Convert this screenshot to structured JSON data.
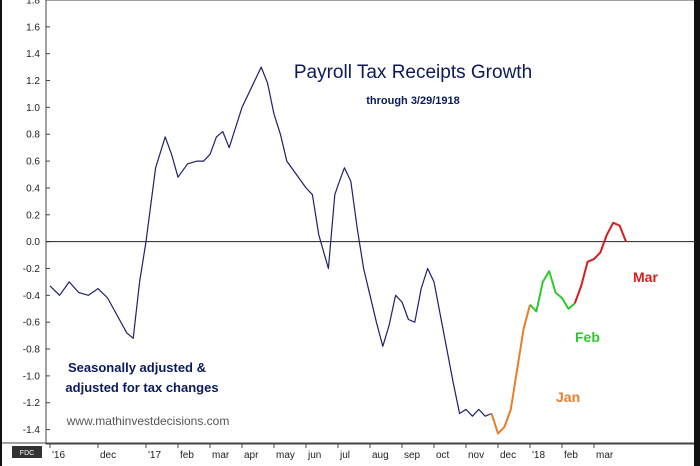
{
  "chart_data": {
    "type": "line",
    "title": "Payroll Tax Receipts Growth",
    "subtitle": "through 3/29/1918",
    "annotation_lines": [
      "Seasonally adjusted &",
      "adjusted for tax changes"
    ],
    "website": "www.mathinvestdecisions.com",
    "badge": "FDC",
    "xlabel": "",
    "ylabel": "",
    "ylim": [
      -1.5,
      1.8
    ],
    "y_ticks": [
      "1.8",
      "1.6",
      "1.4",
      "1.2",
      "1.0",
      "0.8",
      "0.6",
      "0.4",
      "0.2",
      "0.0",
      "-0.2",
      "-0.4",
      "-0.6",
      "-0.8",
      "-1.0",
      "-1.2",
      "-1.4"
    ],
    "y_tick_values": [
      1.8,
      1.6,
      1.4,
      1.2,
      1.0,
      0.8,
      0.6,
      0.4,
      0.2,
      0.0,
      -0.2,
      -0.4,
      -0.6,
      -0.8,
      -1.0,
      -1.2,
      -1.4
    ],
    "x_ticks": [
      "'16",
      "dec",
      "'17",
      "feb",
      "mar",
      "apr",
      "may",
      "jun",
      "jul",
      "aug",
      "sep",
      "oct",
      "nov",
      "dec",
      "'18",
      "feb",
      "mar"
    ],
    "x_tick_positions": [
      0,
      1.5,
      3,
      4,
      5,
      6,
      7,
      8,
      9,
      10,
      11,
      12,
      13,
      14,
      15,
      16,
      17
    ],
    "xlim": [
      0,
      20
    ],
    "reference_line": 0.0,
    "grid": false,
    "series": [
      {
        "color": "#1f1f6b",
        "x": [
          0,
          0.3,
          0.6,
          0.9,
          1.2,
          1.5,
          1.8,
          2.1,
          2.4,
          2.6,
          2.8,
          3.0,
          3.3,
          3.6,
          3.8,
          4.0,
          4.3,
          4.6,
          4.8,
          5.0,
          5.2,
          5.4,
          5.6,
          5.8,
          6.0,
          6.2,
          6.4,
          6.6,
          6.8,
          7.0,
          7.2,
          7.4,
          7.7,
          8.0,
          8.2,
          8.4,
          8.7,
          8.9,
          9.0,
          9.2,
          9.4,
          9.6,
          9.8,
          10.0,
          10.2,
          10.4,
          10.6,
          10.8,
          11.0,
          11.2,
          11.4,
          11.6,
          11.8,
          12.0,
          12.2,
          12.4,
          12.6,
          12.8,
          13.0,
          13.2,
          13.4,
          13.6,
          13.8
        ],
        "values": [
          -0.33,
          -0.4,
          -0.3,
          -0.38,
          -0.4,
          -0.35,
          -0.42,
          -0.55,
          -0.68,
          -0.72,
          -0.3,
          0.0,
          0.55,
          0.78,
          0.65,
          0.48,
          0.58,
          0.6,
          0.6,
          0.65,
          0.78,
          0.82,
          0.7,
          0.85,
          1.0,
          1.1,
          1.2,
          1.3,
          1.18,
          0.95,
          0.8,
          0.6,
          0.5,
          0.4,
          0.35,
          0.05,
          -0.2,
          0.35,
          0.42,
          0.55,
          0.45,
          0.1,
          -0.2,
          -0.4,
          -0.6,
          -0.78,
          -0.62,
          -0.4,
          -0.45,
          -0.58,
          -0.6,
          -0.35,
          -0.2,
          -0.3,
          -0.55,
          -0.8,
          -1.05,
          -1.28,
          -1.25,
          -1.3,
          -1.25,
          -1.3,
          -1.28
        ]
      },
      {
        "name": "Jan",
        "color": "#e87d2a",
        "x": [
          13.8,
          14.0,
          14.2,
          14.4,
          14.6,
          14.8,
          15.0
        ],
        "values": [
          -1.28,
          -1.43,
          -1.38,
          -1.25,
          -0.95,
          -0.65,
          -0.47
        ]
      },
      {
        "name": "Feb",
        "color": "#2ec92e",
        "x": [
          15.0,
          15.2,
          15.4,
          15.6,
          15.8,
          16.0,
          16.2,
          16.4
        ],
        "values": [
          -0.47,
          -0.52,
          -0.3,
          -0.22,
          -0.38,
          -0.42,
          -0.5,
          -0.46
        ]
      },
      {
        "name": "Mar",
        "color": "#d41f1f",
        "x": [
          16.4,
          16.6,
          16.8,
          17.0,
          17.2,
          17.4,
          17.6,
          17.8,
          18.0
        ],
        "values": [
          -0.46,
          -0.33,
          -0.15,
          -0.13,
          -0.08,
          0.05,
          0.14,
          0.12,
          0.0
        ]
      }
    ],
    "series_labels": {
      "Jan": "Jan",
      "Feb": "Feb",
      "Mar": "Mar"
    }
  }
}
